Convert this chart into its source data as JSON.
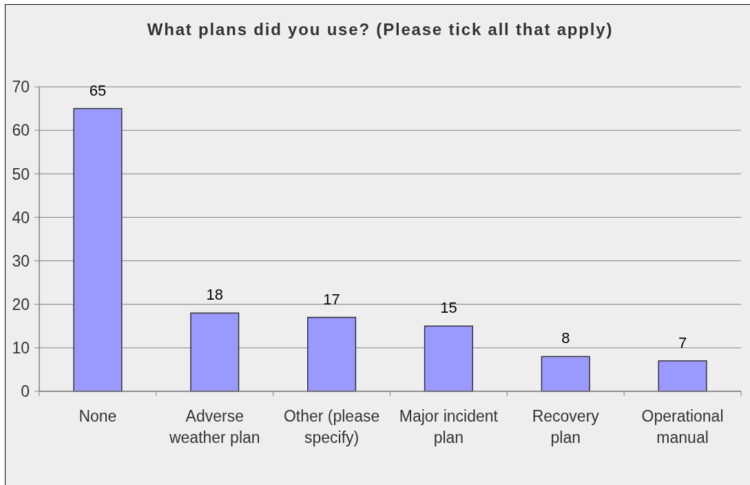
{
  "chart_data": {
    "type": "bar",
    "title": "What plans did you use? (Please tick all that apply)",
    "categories": [
      "None",
      "Adverse weather plan",
      "Other (please specify)",
      "Major incident plan",
      "Recovery plan",
      "Operational manual"
    ],
    "values": [
      65,
      18,
      17,
      15,
      8,
      7
    ],
    "color": "#9999ff",
    "ylim": [
      0,
      70
    ],
    "yticks": [
      0,
      10,
      20,
      30,
      40,
      50,
      60,
      70
    ],
    "grid": "y",
    "data_labels": true
  }
}
